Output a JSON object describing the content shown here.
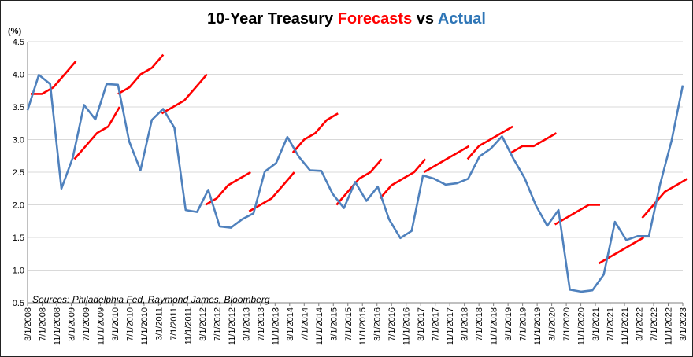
{
  "chart_data": {
    "type": "line",
    "title_parts": {
      "prefix": "10-Year Treasury ",
      "forecasts": "Forecasts",
      "middle": " vs ",
      "actual": "Actual"
    },
    "ylabel": "(%)",
    "ylim": [
      0.5,
      4.5
    ],
    "yticks": [
      "0.5",
      "1.0",
      "1.5",
      "2.0",
      "2.5",
      "3.0",
      "3.5",
      "4.0",
      "4.5"
    ],
    "grid": true,
    "source": "Sources: Philadelphia Fed, Raymond James, Bloomberg",
    "colors": {
      "actual": "#4F81BD",
      "forecast": "#FF0000",
      "title_text": "#000000",
      "grid": "#D9D9D9"
    },
    "x_labels": [
      "3/1/2008",
      "7/1/2008",
      "11/1/2008",
      "3/1/2009",
      "7/1/2009",
      "11/1/2009",
      "3/1/2010",
      "7/1/2010",
      "11/1/2010",
      "3/1/2011",
      "7/1/2011",
      "11/1/2011",
      "3/1/2012",
      "7/1/2012",
      "11/1/2012",
      "3/1/2013",
      "7/1/2013",
      "11/1/2013",
      "3/1/2014",
      "7/1/2014",
      "11/1/2014",
      "3/1/2015",
      "7/1/2015",
      "11/1/2015",
      "3/1/2016",
      "7/1/2016",
      "11/1/2016",
      "3/1/2017",
      "7/1/2017",
      "11/1/2017",
      "3/1/2018",
      "7/1/2018",
      "11/1/2018",
      "3/1/2019",
      "7/1/2019",
      "11/1/2019",
      "3/1/2020",
      "7/1/2020",
      "11/1/2020",
      "3/1/2021",
      "7/1/2021",
      "11/1/2021",
      "3/1/2022",
      "7/1/2022",
      "11/1/2022",
      "3/1/2023"
    ],
    "series": [
      {
        "key": "actual",
        "values": [
          3.45,
          3.99,
          3.85,
          2.25,
          2.72,
          3.53,
          3.31,
          3.85,
          3.84,
          2.97,
          2.53,
          3.3,
          3.47,
          3.18,
          1.92,
          1.89,
          2.23,
          1.67,
          1.65,
          1.78,
          1.87,
          2.51,
          2.64,
          3.04,
          2.74,
          2.53,
          2.52,
          2.17,
          1.95,
          2.35,
          2.06,
          2.28,
          1.78,
          1.49,
          1.6,
          2.45,
          2.4,
          2.31,
          2.33,
          2.4,
          2.74,
          2.86,
          3.05,
          2.71,
          2.41,
          1.99,
          1.68,
          1.92,
          0.7,
          0.67,
          0.69,
          0.93,
          1.74,
          1.46,
          1.52,
          1.52,
          2.32,
          2.98,
          3.83
        ]
      }
    ],
    "forecast_segments": [
      [
        3.7,
        3.7,
        3.8,
        4.0,
        4.2
      ],
      [
        2.7,
        2.9,
        3.1,
        3.2,
        3.5
      ],
      [
        3.7,
        3.8,
        4.0,
        4.1,
        4.3
      ],
      [
        3.4,
        3.5,
        3.6,
        3.8,
        4.0
      ],
      [
        2.0,
        2.1,
        2.3,
        2.4,
        2.5
      ],
      [
        1.9,
        2.0,
        2.1,
        2.3,
        2.5
      ],
      [
        2.8,
        3.0,
        3.1,
        3.3,
        3.4
      ],
      [
        2.0,
        2.2,
        2.4,
        2.5,
        2.7
      ],
      [
        2.1,
        2.3,
        2.4,
        2.5,
        2.7
      ],
      [
        2.5,
        2.6,
        2.7,
        2.8,
        2.9
      ],
      [
        2.7,
        2.9,
        3.0,
        3.1,
        3.2
      ],
      [
        2.8,
        2.9,
        2.9,
        3.0,
        3.1
      ],
      [
        1.7,
        1.8,
        1.9,
        2.0,
        2.0
      ],
      [
        1.1,
        1.2,
        1.3,
        1.4,
        1.5
      ],
      [
        1.8,
        2.0,
        2.2,
        2.3,
        2.4
      ]
    ]
  }
}
